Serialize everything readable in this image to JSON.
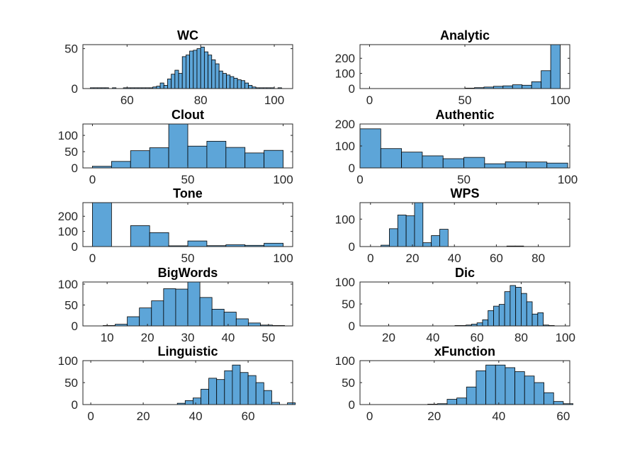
{
  "chart_data": [
    {
      "type": "bar",
      "title": "WC",
      "xlim": [
        48,
        105
      ],
      "ylim": [
        0,
        55
      ],
      "xticks": [
        60,
        80,
        100
      ],
      "yticks": [
        0,
        50
      ],
      "bin_start": 50,
      "bin_width": 1,
      "values": [
        1,
        1,
        1,
        1,
        1,
        0,
        1,
        0,
        0,
        1,
        1,
        1,
        1,
        1,
        1,
        1,
        1,
        2,
        3,
        7,
        4,
        12,
        18,
        23,
        19,
        40,
        42,
        47,
        48,
        50,
        52,
        46,
        42,
        36,
        31,
        22,
        19,
        17,
        15,
        13,
        11,
        10,
        7,
        4,
        2,
        1,
        1,
        1,
        1,
        1,
        0,
        1
      ]
    },
    {
      "type": "bar",
      "title": "Analytic",
      "xlim": [
        -5,
        105
      ],
      "ylim": [
        0,
        290
      ],
      "xticks": [
        0,
        50,
        100
      ],
      "yticks": [
        0,
        100,
        200
      ],
      "bin_start": 50,
      "bin_width": 5,
      "values": [
        3,
        6,
        10,
        15,
        18,
        25,
        22,
        45,
        118,
        290
      ]
    },
    {
      "type": "bar",
      "title": "Clout",
      "xlim": [
        -5,
        105
      ],
      "ylim": [
        0,
        135
      ],
      "xticks": [
        0,
        50,
        100
      ],
      "yticks": [
        0,
        50,
        100
      ],
      "bin_start": 0,
      "bin_width": 10,
      "values": [
        5,
        20,
        53,
        62,
        135,
        67,
        82,
        63,
        46,
        54
      ]
    },
    {
      "type": "bar",
      "title": "Authentic",
      "xlim": [
        0,
        101
      ],
      "ylim": [
        0,
        200
      ],
      "xticks": [
        0,
        50,
        100
      ],
      "yticks": [
        0,
        100,
        200
      ],
      "bin_start": 0,
      "bin_width": 10,
      "values": [
        178,
        88,
        72,
        55,
        42,
        48,
        19,
        28,
        27,
        22
      ]
    },
    {
      "type": "bar",
      "title": "Tone",
      "xlim": [
        -5,
        105
      ],
      "ylim": [
        0,
        290
      ],
      "xticks": [
        0,
        50,
        100
      ],
      "yticks": [
        0,
        100,
        200
      ],
      "bin_start": 0,
      "bin_width": 10,
      "values": [
        290,
        0,
        138,
        92,
        5,
        37,
        6,
        12,
        8,
        22
      ]
    },
    {
      "type": "bar",
      "title": "WPS",
      "xlim": [
        -5,
        95
      ],
      "ylim": [
        0,
        160
      ],
      "xticks": [
        0,
        20,
        40,
        60,
        80
      ],
      "yticks": [
        0,
        100
      ],
      "bin_start": 5,
      "bin_width": 4,
      "values": [
        5,
        65,
        115,
        112,
        160,
        14,
        40,
        63,
        0,
        0,
        0,
        0,
        0,
        0,
        0,
        2,
        2,
        0
      ]
    },
    {
      "type": "bar",
      "title": "BigWords",
      "xlim": [
        4,
        56
      ],
      "ylim": [
        0,
        105
      ],
      "xticks": [
        10,
        20,
        30,
        40,
        50
      ],
      "yticks": [
        0,
        50,
        100
      ],
      "bin_start": 9,
      "bin_width": 3,
      "values": [
        1,
        4,
        22,
        43,
        60,
        89,
        88,
        105,
        68,
        40,
        33,
        17,
        7,
        2,
        1
      ]
    },
    {
      "type": "bar",
      "title": "Dic",
      "xlim": [
        7,
        102
      ],
      "ylim": [
        0,
        100
      ],
      "xticks": [
        20,
        40,
        60,
        80,
        100
      ],
      "yticks": [
        0,
        50,
        100
      ],
      "bin_start": 50,
      "bin_width": 2.5,
      "values": [
        1,
        1,
        2,
        4,
        7,
        14,
        35,
        45,
        49,
        78,
        92,
        88,
        74,
        55,
        27,
        30,
        2,
        1
      ]
    },
    {
      "type": "bar",
      "title": "Linguistic",
      "xlim": [
        -3,
        77
      ],
      "ylim": [
        0,
        100
      ],
      "xticks": [
        0,
        20,
        40,
        60
      ],
      "yticks": [
        0,
        50,
        100
      ],
      "bin_start": 33,
      "bin_width": 3,
      "values": [
        3,
        9,
        15,
        35,
        60,
        57,
        77,
        90,
        73,
        66,
        50,
        32,
        5,
        0,
        4
      ]
    },
    {
      "type": "bar",
      "title": "xFunction",
      "xlim": [
        -3,
        62
      ],
      "ylim": [
        0,
        100
      ],
      "xticks": [
        0,
        20,
        40,
        60
      ],
      "yticks": [
        0,
        50,
        100
      ],
      "bin_start": 18,
      "bin_width": 3,
      "values": [
        1,
        2,
        12,
        15,
        40,
        77,
        90,
        90,
        84,
        75,
        65,
        50,
        27,
        7,
        2
      ]
    }
  ]
}
